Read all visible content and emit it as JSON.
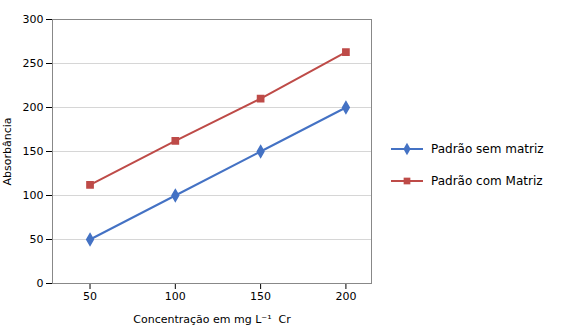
{
  "chart_data": {
    "type": "line",
    "x": [
      50,
      100,
      150,
      200
    ],
    "series": [
      {
        "name": "Padrão sem matriz",
        "color": "#4472C4",
        "marker": "diamond",
        "values": [
          50,
          100,
          150,
          200
        ]
      },
      {
        "name": "Padrão com Matriz",
        "color": "#BE4B48",
        "marker": "square",
        "values": [
          112,
          162,
          210,
          263
        ]
      }
    ],
    "xlabel": "Concentração em mg L⁻¹  Cr",
    "ylabel": "Absorbância",
    "xlim": [
      28,
      215
    ],
    "xticks": [
      50,
      100,
      150,
      200
    ],
    "ylim": [
      0,
      300
    ],
    "yticks": [
      0,
      50,
      100,
      150,
      200,
      250,
      300
    ],
    "grid": true,
    "legend": "right"
  }
}
